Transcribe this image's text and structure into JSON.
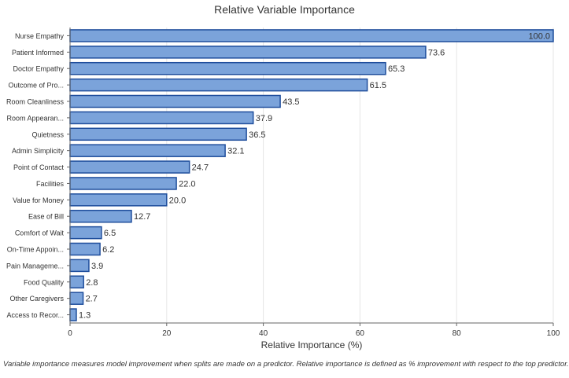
{
  "chart_data": {
    "type": "bar",
    "orientation": "horizontal",
    "title": "Relative Variable Importance",
    "xlabel": "Relative Importance (%)",
    "ylabel": "",
    "xlim": [
      0,
      100
    ],
    "xticks": [
      0,
      20,
      40,
      60,
      80,
      100
    ],
    "grid": true,
    "categories": [
      "Nurse Empathy",
      "Patient Informed",
      "Doctor Empathy",
      "Outcome of Pro...",
      "Room Cleanliness",
      "Room Appearan...",
      "Quietness",
      "Admin Simplicity",
      "Point of Contact",
      "Facilities",
      "Value for Money",
      "Ease of Bill",
      "Comfort of Wait",
      "On-Time Appoin...",
      "Pain Manageme...",
      "Food Quality",
      "Other Caregivers",
      "Access to Recor..."
    ],
    "values": [
      100.0,
      73.6,
      65.3,
      61.5,
      43.5,
      37.9,
      36.5,
      32.1,
      24.7,
      22.0,
      20.0,
      12.7,
      6.5,
      6.2,
      3.9,
      2.8,
      2.7,
      1.3
    ],
    "value_labels": [
      "100.0",
      "73.6",
      "65.3",
      "61.5",
      "43.5",
      "37.9",
      "36.5",
      "32.1",
      "24.7",
      "22.0",
      "20.0",
      "12.7",
      "6.5",
      "6.2",
      "3.9",
      "2.8",
      "2.7",
      "1.3"
    ],
    "colors": {
      "bar_fill": "#7ba3da",
      "bar_stroke": "#1f4e9c",
      "grid": "#e6e6e6",
      "axis": "#666666",
      "text": "#333333"
    }
  },
  "footnote": "Variable importance measures model improvement when splits are made on a predictor. Relative importance is defined as % improvement with respect to the top predictor."
}
